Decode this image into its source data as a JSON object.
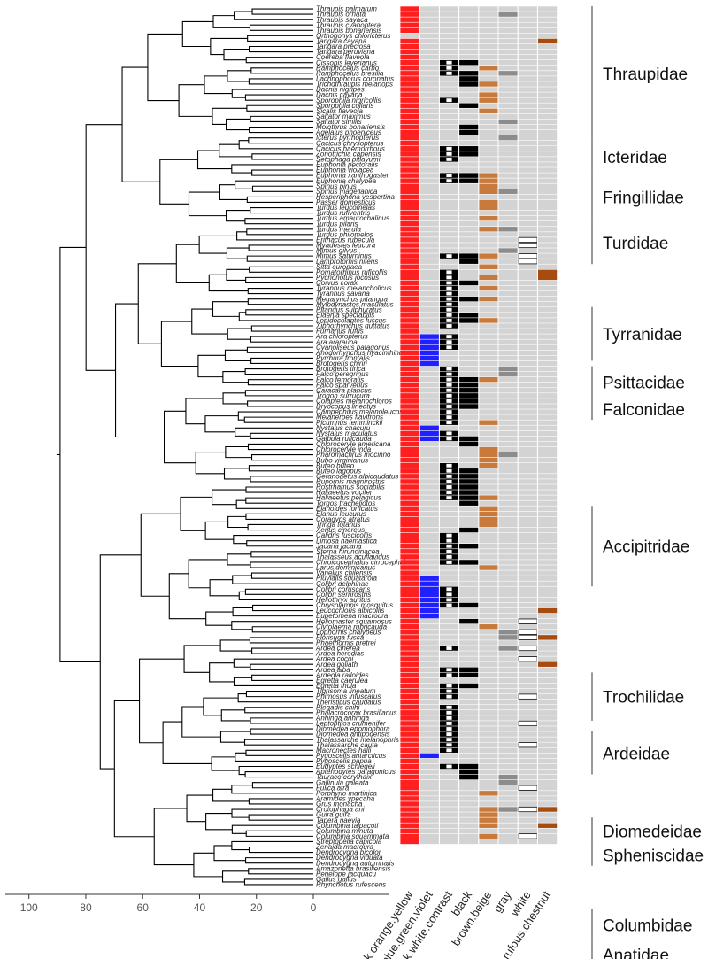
{
  "chart_data": {
    "type": "heatmap",
    "title": "",
    "xlabel": "",
    "ylabel": "",
    "tree_axis": {
      "ticks": [
        100,
        80,
        60,
        40,
        20,
        0
      ],
      "range": [
        108,
        0
      ]
    },
    "columns": [
      "red.pink.orange.yellow",
      "blue.green.violet",
      "dark.white.contrast",
      "black",
      "brown.beige",
      "gray",
      "white",
      "rufous.chestnut"
    ],
    "families": [
      {
        "name": "Thraupidae",
        "row_start": 0,
        "row_end": 24
      },
      {
        "name": "Icteridae",
        "row_start": 25,
        "row_end": 30
      },
      {
        "name": "Fringillidae",
        "row_start": 31,
        "row_end": 39
      },
      {
        "name": "Turdidae",
        "row_start": 40,
        "row_end": 47
      },
      {
        "name": "Tyrranidae",
        "row_start": 56,
        "row_end": 65
      },
      {
        "name": "Psittacidae",
        "row_start": 67,
        "row_end": 72
      },
      {
        "name": "Falconidae",
        "row_start": 73,
        "row_end": 76
      },
      {
        "name": "Accipitridae",
        "row_start": 93,
        "row_end": 107
      },
      {
        "name": "Trochilidae",
        "row_start": 124,
        "row_end": 132
      },
      {
        "name": "Ardeidae",
        "row_start": 135,
        "row_end": 142
      },
      {
        "name": "Diomedeidae",
        "row_start": 151,
        "row_end": 155
      },
      {
        "name": "Spheniscidae",
        "row_start": 156,
        "row_end": 159
      },
      {
        "name": "Columbidae",
        "row_start": 168,
        "row_end": 173
      },
      {
        "name": "Anatidae",
        "row_start": 174,
        "row_end": 178
      }
    ],
    "taxa": [
      "Thraupis palmarum",
      "Thraupis ornata",
      "Thraupis sayaca",
      "Thraupis cyanoptera",
      "Thraupis bonariensis",
      "Orthogonys chloricterus",
      "Tangara cayana",
      "Tangara preciosa",
      "Tangara peruviana",
      "Coereba flaveola",
      "Cissopis leverianus",
      "Ramphocelus carbo",
      "Ramphocelus bresilia",
      "Lachnophorus coronatus",
      "Trichothraupis melanops",
      "Dacnis nigripes",
      "Dacnis cayana",
      "Sporophila nigricollis",
      "Sporophila collaris",
      "Sicalis flaveola",
      "Saltator maximus",
      "Saltator similis",
      "Molothrus bonariensis",
      "Agelaius phoeniceus",
      "Icterus pyrrhopterus",
      "Cacicus chrysopterus",
      "Cacicus haemorrhous",
      "Zonotrichia capensis",
      "Setophaga pitiayumi",
      "Euphonia pectoralis",
      "Euphonia violacea",
      "Euphonia xanthogaster",
      "Euphonia chalybea",
      "Spinus pinus",
      "Spinus magellanica",
      "Hesperiphona vespertina",
      "Passer domesticus",
      "Turdus leucomelas",
      "Turdus rufiventris",
      "Turdus amaurochalinus",
      "Turdus pilaris",
      "Turdus merula",
      "Turdus philomelos",
      "Erithacus rubecula",
      "Myadestes leucura",
      "Mimus gilvus",
      "Mimus saturninus",
      "Lamprotornis nitens",
      "Sitta europaea",
      "Pomatorhinus ruficollis",
      "Pycnonotus jocosus",
      "Corvus corax",
      "Tyrannus melancholicus",
      "Tyrannus savana",
      "Megarynchus pitangua",
      "Myiodynastes maculatus",
      "Pitangus sulphuratus",
      "Elaenia spectabilis",
      "Lepidocolaptes fuscus",
      "Xiphorhynchus guttatus",
      "Furnarius rufus",
      "Ara chloropterus",
      "Ara ararauna",
      "Cyanoliseus patagonus",
      "Anodorhynchus hyacinthinus",
      "Pyrrhura frontalis",
      "Brotogeris chiriri",
      "Brotogeris tirica",
      "Falco peregrinus",
      "Falco femoralis",
      "Falco sparverius",
      "Caracara plancus",
      "Trogon surrucura",
      "Colaptes melanochloros",
      "Dryocopus lineatus",
      "Campephilus melanoleucos",
      "Melanerpes flavifrons",
      "Picumnus temminckii",
      "Nystalus chacuru",
      "Nystalus maculatus",
      "Galbula ruficauda",
      "Chloroceryle americana",
      "Chloroceryle inda",
      "Pharomachrus mocinno",
      "Bubo virginianus",
      "Buteo buteo",
      "Buteo lagopus",
      "Geranoaetus albicaudatus",
      "Rupornis magnirostris",
      "Rostrhamus sociabilis",
      "Haliaeetus vocifer",
      "Haliaeetus pelagicus",
      "Torgos tracheliotos",
      "Elanoides forficatus",
      "Elanus leucurus",
      "Coragyps atratus",
      "Tringa totanus",
      "Xenus cinereus",
      "Calidris fuscicollis",
      "Limosa haemastica",
      "Jacana jacana",
      "Sterna hirundinacea",
      "Thalasseus acuflavidus",
      "Chroicocephalus cirrocephalus",
      "Larus dominicanus",
      "Vanellus chilensis",
      "Pluvialis squatarola",
      "Colibri delphinae",
      "Colibri coruscans",
      "Colibri serrirostris",
      "Heliothryx auritus",
      "Chrysolampis mosquitus",
      "Leucochloris albicollis",
      "Eupetomena macroura",
      "Heliomaster squamosus",
      "Clytolaema rubricauda",
      "Lophornis chalybeus",
      "Florisuga fusca",
      "Phaethornis pretrei",
      "Ardea cinerea",
      "Ardea herodias",
      "Ardea cocoi",
      "Ardea goliath",
      "Ardea alba",
      "Ardeola ralloides",
      "Egretta caerulea",
      "Egretta thula",
      "Tigrisoma lineatum",
      "Phimosus infuscatus",
      "Theristicus caudatus",
      "Plegadis chihi",
      "Phalacrocorax brasilianus",
      "Anhinga anhinga",
      "Leptoptilos crumenifer",
      "Diomedea epomophora",
      "Diomedea antipodensis",
      "Thalassarche melanophris",
      "Thalassarche cauta",
      "Macronectes halli",
      "Pygoscelis antarcticus",
      "Pygoscelis papua",
      "Eudyptes schlegeli",
      "Aptenodytes patagonicus",
      "Tauraco corythaix",
      "Gallinula galeata",
      "Fulica atra",
      "Porphyrio martinica",
      "Aramides ypecaha",
      "Grus monacha",
      "Crotophaga ani",
      "Guira guira",
      "Tapera naevia",
      "Columbina talpacoti",
      "Columbina minuta",
      "Columbina squammata",
      "Streptopelia capicola",
      "Zenaida macroura",
      "Dendrocygna bicolor",
      "Dendrocygna viduata",
      "Dendrocygna autumnalis",
      "Amazonetta brasiliensis",
      "Penelope jacquacu",
      "Gallus gallus",
      "Rhynchotus rufescens"
    ],
    "cell_codes": [
      "R.B.K...",
      "R.B.KG..",
      "R.B.K.G.",
      "R.B.K...",
      "R.B.K...",
      "........",
      "R.B.K..C",
      "R.B.KN..",
      "R.B.K...",
      "R...K...",
      "R.DK....",
      "R.D.N...",
      "R.DK.G..",
      "R..K....",
      "R..KN...",
      "R.B.K...",
      "R...N...",
      "R.D.N...",
      "R..K....",
      "R...N...",
      "R.B.....",
      "R....G..",
      "R..K....",
      "R..K....",
      "R...KG..",
      "R...K...",
      "R.DK....",
      "R.DK....",
      "R.D.K...",
      "R.B.K...",
      "R...K...",
      "R.DKN...",
      "R.DKN...",
      "R...N...",
      "R...NG..",
      "R...K...",
      "R...N...",
      "R...N...",
      "R...K...",
      "R...N...",
      "R.......",
      "R...NG..",
      "R.B.....",
      "R...K.W.",
      "R...K.W.",
      "R.B..G..",
      "R.DKN.W.",
      "R..K..W.",
      "R...N...",
      "R.D....C",
      "R.D.N..C",
      "R.DK....",
      "R.D.N...",
      "R.D.....",
      "R.DKN...",
      "R.D.....",
      "R.D.....",
      "R.DK....",
      "R.DKN...",
      "R.D..W..",
      "R.......",
      "RBD.....",
      "RBD.....",
      "RBD.....",
      "RB......",
      "RB......",
      "RB......",
      "R.D..G..",
      "R.D..G..",
      "R.DKN...",
      "R.DK....",
      "R.DK.W..",
      "R.DK....",
      "R.DK....",
      "R.DK....",
      "R.D.....",
      "R.D.....",
      "R.D.N...",
      "RB......",
      "RBD.....",
      "RBDK....",
      "R..K.W..",
      "R...N...",
      "R...NG..",
      "R...N...",
      "R.D.N...",
      "R.DK....",
      "R.DK.W..",
      "R.DK.W..",
      "R.DK....",
      "R.DK.W..",
      "R.DKN...",
      "R..K....",
      "R...N...",
      "R...N...",
      "R...N...",
      "R...N...",
      "R..K....",
      "R.D..W..",
      "R.D.....",
      "R.DK.W..",
      "R.D.....",
      "R.D.....",
      "R.DK.W..",
      "R...N...",
      "R.......",
      "RB......",
      "RB......",
      "RBD..W..",
      "RBD.....",
      "RBD.....",
      "RBDK....",
      "RB.....C",
      "RB......",
      "R..K..W.",
      "R...N...",
      "R...KGW.",
      "R...KGWC",
      "R.......",
      "R.D..GW.",
      "R......W",
      "R...K.W.",
      "R......C",
      "R.DK....",
      "R.DK....",
      "R.......",
      "R.DK....",
      "R.D.K...",
      "R.D.K.W.",
      "R.......",
      "R.D..W..",
      "R.D..W..",
      "R.D.K...",
      "R.D...W.",
      "R.D.K...",
      "R.D.K...",
      "R.D.KW..",
      "R.D.K.W.",
      "R.D.K...",
      "RB......",
      "R...K...",
      "R.DKK...",
      "R..K....",
      "R..K.G..",
      "R....G..",
      "R...K.W.",
      "R...N...",
      "R....NG.",
      "R...KNGW",
      "R...NGWC",
      "R...N...",
      "R...N...",
      "R...N..C",
      "R...K...",
      "R...N.W.",
      "R......."
    ]
  }
}
